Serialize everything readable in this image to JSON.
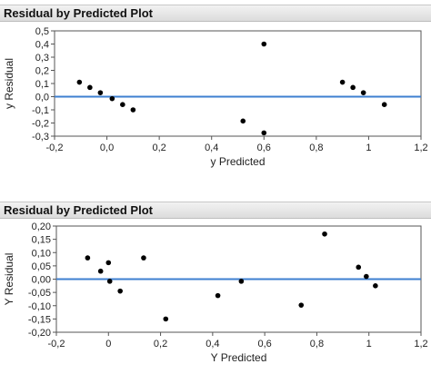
{
  "panels": [
    {
      "title": "Residual by Predicted Plot"
    },
    {
      "title": "Residual by Predicted Plot"
    }
  ],
  "chart_data": [
    {
      "type": "scatter",
      "title": "Residual by Predicted Plot",
      "xlabel": "y Predicted",
      "ylabel": "y Residual",
      "xlim": [
        -0.2,
        1.2
      ],
      "ylim": [
        -0.3,
        0.5
      ],
      "xticks": [
        "-0,2",
        "0,0",
        "0,2",
        "0,4",
        "0,6",
        "0,8",
        "1",
        "1,2"
      ],
      "yticks": [
        "-0,3",
        "-0,2",
        "-0,1",
        "0,0",
        "0,1",
        "0,2",
        "0,3",
        "0,4",
        "0,5"
      ],
      "reference_line_y": 0,
      "reference_color": "#3d7fd0",
      "points": [
        {
          "x": -0.105,
          "y": 0.11
        },
        {
          "x": -0.065,
          "y": 0.07
        },
        {
          "x": -0.025,
          "y": 0.03
        },
        {
          "x": 0.02,
          "y": -0.015
        },
        {
          "x": 0.06,
          "y": -0.06
        },
        {
          "x": 0.1,
          "y": -0.1
        },
        {
          "x": 0.52,
          "y": -0.185
        },
        {
          "x": 0.6,
          "y": 0.4
        },
        {
          "x": 0.6,
          "y": -0.275
        },
        {
          "x": 0.9,
          "y": 0.11
        },
        {
          "x": 0.94,
          "y": 0.07
        },
        {
          "x": 0.98,
          "y": 0.03
        },
        {
          "x": 1.06,
          "y": -0.06
        }
      ]
    },
    {
      "type": "scatter",
      "title": "Residual by Predicted Plot",
      "xlabel": "Y Predicted",
      "ylabel": "Y Residual",
      "xlim": [
        -0.2,
        1.2
      ],
      "ylim": [
        -0.2,
        0.2
      ],
      "xticks": [
        "-0,2",
        "0",
        "0,2",
        "0,4",
        "0,6",
        "0,8",
        "1",
        "1,2"
      ],
      "yticks": [
        "-0,20",
        "-0,15",
        "-0,10",
        "-0,05",
        "0,00",
        "0,05",
        "0,10",
        "0,15",
        "0,20"
      ],
      "reference_line_y": 0,
      "reference_color": "#3d7fd0",
      "points": [
        {
          "x": -0.08,
          "y": 0.08
        },
        {
          "x": -0.03,
          "y": 0.03
        },
        {
          "x": 0.0,
          "y": 0.062
        },
        {
          "x": 0.005,
          "y": -0.008
        },
        {
          "x": 0.045,
          "y": -0.045
        },
        {
          "x": 0.135,
          "y": 0.08
        },
        {
          "x": 0.22,
          "y": -0.15
        },
        {
          "x": 0.42,
          "y": -0.062
        },
        {
          "x": 0.51,
          "y": -0.008
        },
        {
          "x": 0.74,
          "y": -0.098
        },
        {
          "x": 0.83,
          "y": 0.17
        },
        {
          "x": 0.96,
          "y": 0.045
        },
        {
          "x": 0.99,
          "y": 0.01
        },
        {
          "x": 1.025,
          "y": -0.025
        }
      ]
    }
  ]
}
